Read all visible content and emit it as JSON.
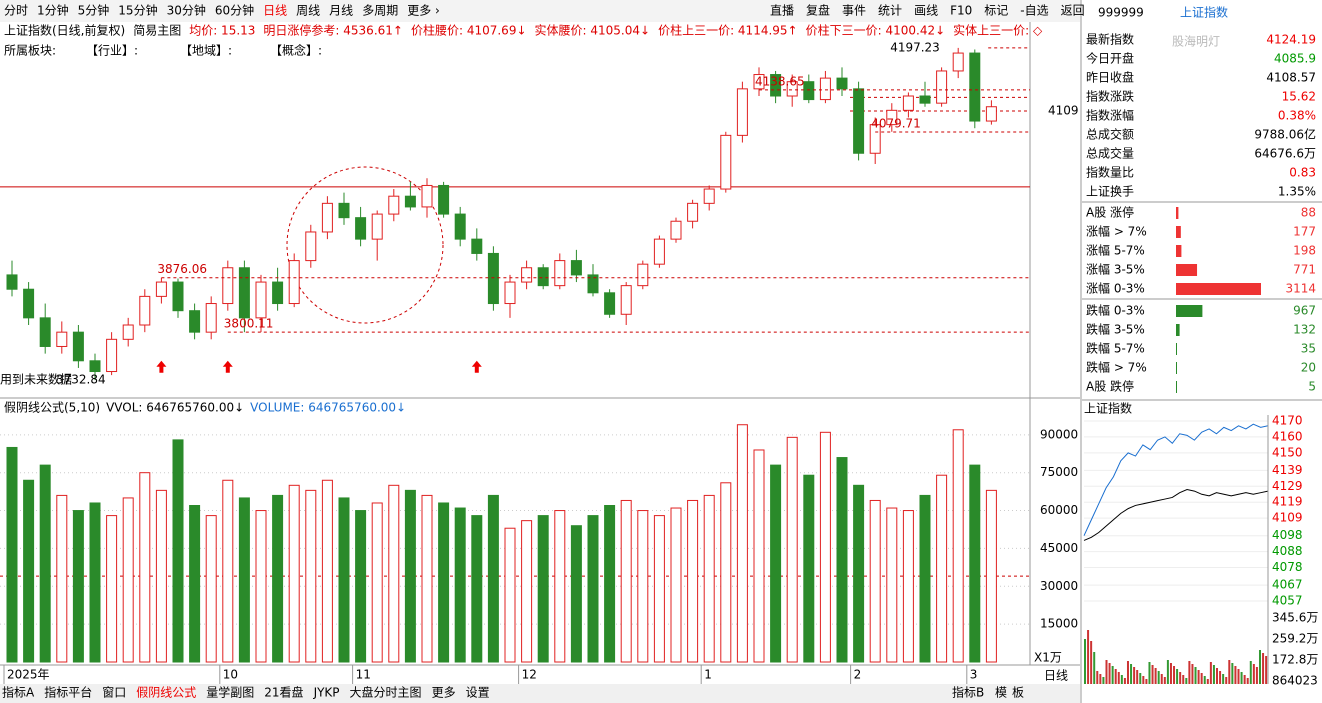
{
  "toolbar": {
    "periods": [
      "分时",
      "1分钟",
      "5分钟",
      "15分钟",
      "30分钟",
      "60分钟",
      "日线",
      "周线",
      "月线",
      "多周期",
      "更多 ›"
    ],
    "buttons": [
      "直播",
      "复盘",
      "事件",
      "统计",
      "画线",
      "F10",
      "标记",
      "-自选",
      "返回"
    ]
  },
  "info_bar": [
    "上证指数(日线,前复权)",
    "简易主图",
    "均价: 15.13",
    "明日涨停参考: 4536.61↑",
    "价柱腰价: 4107.69↓",
    "实体腰价: 4105.04↓",
    "价柱上三一价: 4114.95↑",
    "价柱下三一价: 4100.42↓",
    "实体上三一价: ◇"
  ],
  "sector_bar": [
    "所属板块:",
    "【行业】:",
    "【地域】:",
    "【概念】:"
  ],
  "price_chart": {
    "ylim": [
      3708,
      4239
    ],
    "axis_tick": 4109,
    "solid_line": 4003,
    "extra_dashed": [
      4128,
      4109
    ],
    "annotations": [
      {
        "value": 3876.06,
        "index": 9
      },
      {
        "value": 3800.11,
        "index": 13
      },
      {
        "prefix": "用到未来数据",
        "value": 3732.84,
        "index": 5
      },
      {
        "value": 4138.65,
        "index": 45
      },
      {
        "value": 4079.71,
        "index": 52
      },
      {
        "value": 4197.23,
        "index": 57
      }
    ],
    "candles": [
      [
        3880,
        3900,
        3850,
        3860
      ],
      [
        3860,
        3870,
        3810,
        3820
      ],
      [
        3820,
        3840,
        3770,
        3780
      ],
      [
        3780,
        3815,
        3770,
        3800
      ],
      [
        3800,
        3810,
        3750,
        3760
      ],
      [
        3760,
        3770,
        3733,
        3745
      ],
      [
        3745,
        3800,
        3740,
        3790
      ],
      [
        3790,
        3820,
        3780,
        3810
      ],
      [
        3810,
        3860,
        3800,
        3850
      ],
      [
        3850,
        3876,
        3840,
        3870
      ],
      [
        3870,
        3875,
        3820,
        3830
      ],
      [
        3830,
        3840,
        3790,
        3800
      ],
      [
        3800,
        3850,
        3790,
        3840
      ],
      [
        3840,
        3900,
        3830,
        3890
      ],
      [
        3890,
        3900,
        3800,
        3820
      ],
      [
        3820,
        3880,
        3800,
        3870
      ],
      [
        3870,
        3890,
        3830,
        3840
      ],
      [
        3840,
        3910,
        3835,
        3900
      ],
      [
        3900,
        3950,
        3890,
        3940
      ],
      [
        3940,
        3990,
        3930,
        3980
      ],
      [
        3980,
        3995,
        3950,
        3960
      ],
      [
        3960,
        3975,
        3920,
        3930
      ],
      [
        3930,
        3970,
        3900,
        3965
      ],
      [
        3965,
        4000,
        3955,
        3990
      ],
      [
        3990,
        4010,
        3970,
        3975
      ],
      [
        3975,
        4015,
        3960,
        4005
      ],
      [
        4005,
        4010,
        3960,
        3965
      ],
      [
        3965,
        3975,
        3920,
        3930
      ],
      [
        3930,
        3945,
        3900,
        3910
      ],
      [
        3910,
        3920,
        3830,
        3840
      ],
      [
        3840,
        3880,
        3820,
        3870
      ],
      [
        3870,
        3900,
        3860,
        3890
      ],
      [
        3890,
        3895,
        3860,
        3865
      ],
      [
        3865,
        3910,
        3860,
        3900
      ],
      [
        3900,
        3915,
        3870,
        3880
      ],
      [
        3880,
        3895,
        3850,
        3855
      ],
      [
        3855,
        3860,
        3820,
        3825
      ],
      [
        3825,
        3870,
        3810,
        3865
      ],
      [
        3865,
        3900,
        3860,
        3895
      ],
      [
        3895,
        3935,
        3890,
        3930
      ],
      [
        3930,
        3960,
        3925,
        3955
      ],
      [
        3955,
        3985,
        3945,
        3980
      ],
      [
        3980,
        4005,
        3970,
        4000
      ],
      [
        4000,
        4080,
        3995,
        4075
      ],
      [
        4075,
        4150,
        4065,
        4140
      ],
      [
        4140,
        4170,
        4130,
        4160
      ],
      [
        4160,
        4165,
        4120,
        4130
      ],
      [
        4130,
        4160,
        4115,
        4150
      ],
      [
        4150,
        4160,
        4120,
        4125
      ],
      [
        4125,
        4165,
        4120,
        4155
      ],
      [
        4155,
        4170,
        4130,
        4140
      ],
      [
        4140,
        4150,
        4040,
        4050
      ],
      [
        4050,
        4100,
        4035,
        4090
      ],
      [
        4090,
        4120,
        4080,
        4110
      ],
      [
        4110,
        4135,
        4100,
        4130
      ],
      [
        4130,
        4150,
        4115,
        4120
      ],
      [
        4120,
        4170,
        4115,
        4165
      ],
      [
        4165,
        4197.23,
        4155,
        4190
      ],
      [
        4190,
        4195,
        4085,
        4095
      ],
      [
        4095,
        4124,
        4090,
        4115
      ]
    ]
  },
  "volume_chart": {
    "titles": [
      "假阴线公式(5,10)",
      "VVOL: 646765760.00↓",
      "VOLUME: 646765760.00↓"
    ],
    "ylim": [
      0,
      103800
    ],
    "yticks": [
      15000,
      30000,
      45000,
      60000,
      75000,
      90000
    ],
    "dashed_level": 34000,
    "unit": "X1万",
    "values": [
      85000,
      72000,
      78000,
      66000,
      60000,
      63000,
      58000,
      65000,
      75000,
      68000,
      88000,
      62000,
      58000,
      72000,
      65000,
      60000,
      66000,
      70000,
      68000,
      72000,
      65000,
      60000,
      63000,
      70000,
      68000,
      66000,
      63000,
      61000,
      58000,
      66000,
      53000,
      56000,
      58000,
      60000,
      54000,
      58000,
      62000,
      64000,
      60000,
      58000,
      61000,
      64000,
      66000,
      71000,
      94000,
      84000,
      78000,
      89000,
      74000,
      91000,
      81000,
      70000,
      64000,
      61000,
      60000,
      66000,
      74000,
      92000,
      78000,
      68000
    ]
  },
  "x_labels": [
    {
      "label": "2025年",
      "index": 0
    },
    {
      "label": "10",
      "index": 13
    },
    {
      "label": "11",
      "index": 21
    },
    {
      "label": "12",
      "index": 31
    },
    {
      "label": "1",
      "index": 42
    },
    {
      "label": "2",
      "index": 51
    },
    {
      "label": "3",
      "index": 58
    }
  ],
  "quote": {
    "code": "999999",
    "name": "上证指数",
    "watermark": "股海明灯",
    "stats": [
      {
        "label": "最新指数",
        "value": 4124.19,
        "color": "#e00"
      },
      {
        "label": "今日开盘",
        "value": 4085.9,
        "color": "#090"
      },
      {
        "label": "昨日收盘",
        "value": 4108.57,
        "color": "#000"
      },
      {
        "label": "指数涨跌",
        "value": 15.62,
        "color": "#e00"
      },
      {
        "label": "指数涨幅",
        "value": "0.38%",
        "color": "#e00"
      },
      {
        "label": "总成交额",
        "value": "9788.06亿",
        "color": "#000"
      },
      {
        "label": "总成交量",
        "value": "64676.6万",
        "color": "#000"
      },
      {
        "label": "指数量比",
        "value": 0.83,
        "color": "#e00"
      },
      {
        "label": "上证换手",
        "value": "1.35%",
        "color": "#000"
      }
    ],
    "breadth": [
      {
        "label": "A股 涨停",
        "value": 88,
        "color": "#e33"
      },
      {
        "label": "涨幅 > 7%",
        "value": 177,
        "color": "#e33"
      },
      {
        "label": "涨幅 5-7%",
        "value": 198,
        "color": "#e33"
      },
      {
        "label": "涨幅 3-5%",
        "value": 771,
        "color": "#e33"
      },
      {
        "label": "涨幅 0-3%",
        "value": 3114,
        "color": "#e33"
      },
      {
        "label": "跌幅 0-3%",
        "value": 967,
        "color": "#2a8a2a"
      },
      {
        "label": "跌幅 3-5%",
        "value": 132,
        "color": "#2a8a2a"
      },
      {
        "label": "跌幅 5-7%",
        "value": 35,
        "color": "#2a8a2a"
      },
      {
        "label": "跌幅 > 7%",
        "value": 20,
        "color": "#2a8a2a"
      },
      {
        "label": "A股 跌停",
        "value": 5,
        "color": "#2a8a2a"
      }
    ]
  },
  "intraday": {
    "title": "上证指数",
    "ylim": [
      4052,
      4174
    ],
    "yticks": [
      4170,
      4160,
      4150,
      4139,
      4129,
      4119,
      4109,
      4098,
      4088,
      4078,
      4067,
      4057
    ],
    "price": [
      4098,
      4108,
      4118,
      4128,
      4135,
      4145,
      4150,
      4148,
      4155,
      4152,
      4158,
      4160,
      4156,
      4162,
      4161,
      4158,
      4163,
      4165,
      4162,
      4166,
      4164,
      4167,
      4165,
      4168,
      4166,
      4167
    ],
    "avg": [
      4095,
      4097,
      4100,
      4104,
      4108,
      4112,
      4115,
      4117,
      4118,
      4119,
      4120,
      4121,
      4122,
      4125,
      4127,
      4126,
      4124,
      4123,
      4125,
      4124,
      4123,
      4124,
      4125,
      4124,
      4125,
      4126
    ],
    "vol_ticks": [
      "345.6万",
      "259.2万",
      "172.8万",
      "864023"
    ]
  },
  "bottom_tabs": [
    "指标A",
    "指标平台",
    "窗口",
    "假阴线公式",
    "量学副图",
    "21看盘",
    "JYKP",
    "大盘分时主图",
    "更多",
    "设置"
  ],
  "bottom_right": [
    "指标B",
    "模",
    "板"
  ],
  "period_label": "日线"
}
